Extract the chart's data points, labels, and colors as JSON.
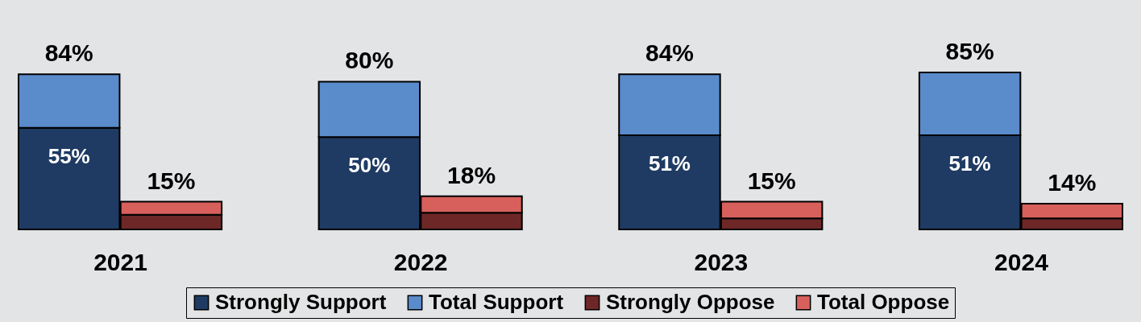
{
  "chart_data": {
    "type": "bar",
    "stacked": true,
    "legend": "bottom",
    "xlim": [
      2020.6,
      2024.4
    ],
    "xticks": [
      2021,
      2022,
      2023,
      2024
    ],
    "x": [
      2020.83,
      2021.17,
      2021.83,
      2022.17,
      2022.83,
      2023.17,
      2023.83,
      2024.17
    ],
    "series": [
      {
        "name": "Strongly Support",
        "color": "#1f3b63",
        "values": [
          55,
          null,
          50,
          null,
          51,
          null,
          51,
          null
        ],
        "value_labels": [
          "55%",
          null,
          "50%",
          null,
          "51%",
          null,
          "51%",
          null
        ]
      },
      {
        "name": "Total Support",
        "color": "#5a8bcb",
        "values": [
          29,
          null,
          30,
          null,
          33,
          null,
          34,
          null
        ]
      },
      {
        "name": "Strongly Oppose",
        "color": "#6e2727",
        "values": [
          null,
          8,
          null,
          9,
          null,
          6,
          null,
          6
        ]
      },
      {
        "name": "Total Oppose",
        "color": "#d7605c",
        "values": [
          null,
          7,
          null,
          9,
          null,
          9,
          null,
          8
        ]
      }
    ],
    "totals": [
      "84%",
      "15%",
      "80%",
      "18%",
      "84%",
      "15%",
      "85%",
      "14%"
    ]
  }
}
